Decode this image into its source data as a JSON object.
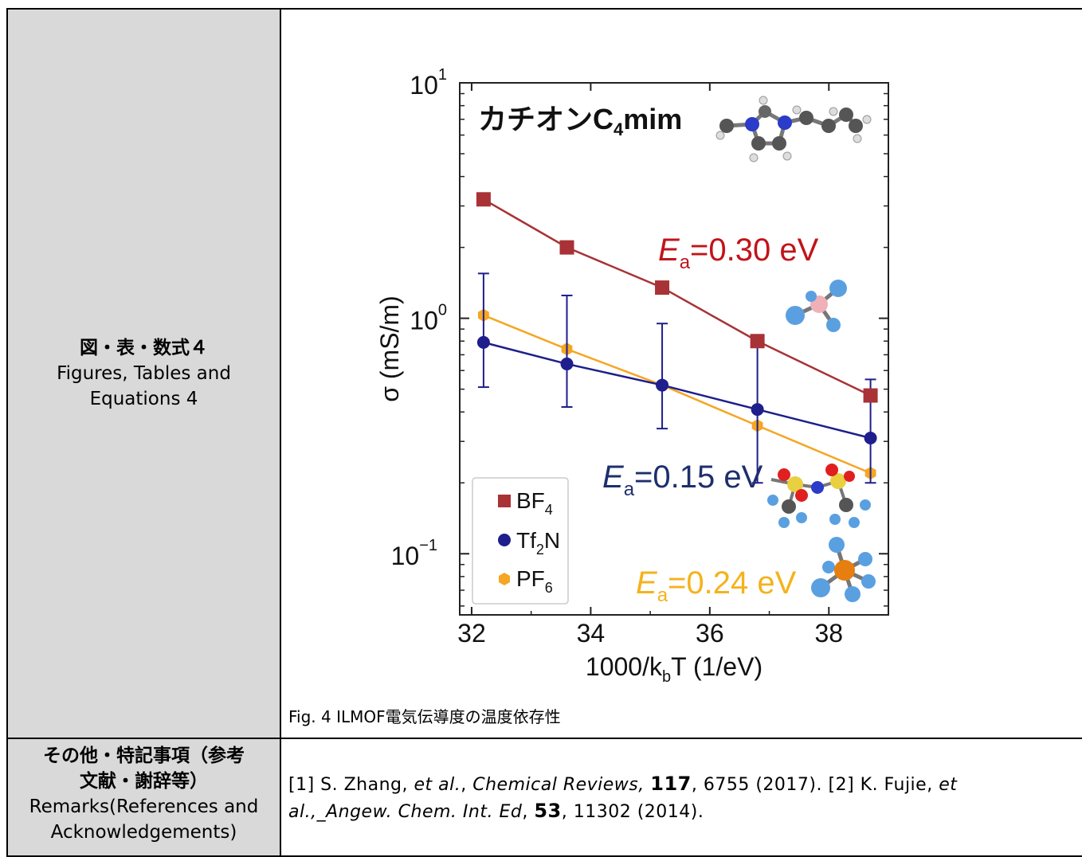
{
  "row1": {
    "label_jp": "図・表・数式４",
    "label_en_1": "Figures, Tables and",
    "label_en_2": "Equations 4",
    "caption": "Fig. 4 ILMOF電気伝導度の温度依存性"
  },
  "row2": {
    "label_jp_1": "その他・特記事項（参考",
    "label_jp_2": "文献・謝辞等）",
    "label_en_1": "Remarks(References and",
    "label_en_2": "Acknowledgements)",
    "ref1_a": "[1] S. Zhang, ",
    "ref1_etal": "et al.",
    "ref1_sep": ", ",
    "ref1_journal": "Chemical Reviews,",
    "ref1_vol": "117",
    "ref1_rest": ", 6755 (2017). [2] K. Fujie, ",
    "ref2_etal_1": "et",
    "ref2_etal_2": "al.",
    "ref2_journal": ",_Angew. Chem. Int. Ed",
    "ref2_sep": ", ",
    "ref2_vol": "53",
    "ref2_rest": ", 11302 (2014)."
  },
  "chart_data": {
    "type": "scatter",
    "x_label": "1000/k",
    "x_label_sub": "b",
    "x_label_end": "T (1/eV)",
    "y_label": "σ (mS/m)",
    "y_scale": "log",
    "xlim": [
      31.8,
      39.0
    ],
    "ylim": [
      0.055,
      10
    ],
    "x_ticks": [
      "32",
      "34",
      "36",
      "38"
    ],
    "y_ticks": [
      {
        "base": "10",
        "exp": "1"
      },
      {
        "base": "10",
        "exp": "0"
      },
      {
        "base": "10",
        "exp": "−1"
      }
    ],
    "annotation_title": "カチオンC",
    "annotation_title_sub": "4",
    "annotation_title_end": "mim",
    "series": [
      {
        "name": "BF",
        "sub": "4",
        "color": "#a83236",
        "marker": "square",
        "x": [
          32.2,
          33.6,
          35.2,
          36.8,
          38.7
        ],
        "y": [
          3.2,
          2.0,
          1.35,
          0.8,
          0.47
        ],
        "ea_label": "E",
        "ea_sub": "a",
        "ea_value": "=0.30 eV",
        "ea_color": "#c0141a"
      },
      {
        "name": "Tf",
        "sub": "2",
        "name_end": "N",
        "color": "#1e1e8c",
        "marker": "circle",
        "x": [
          32.2,
          33.6,
          35.2,
          36.8,
          38.7
        ],
        "y": [
          0.79,
          0.64,
          0.52,
          0.41,
          0.31
        ],
        "err_hi": [
          1.55,
          1.25,
          0.95,
          0.78,
          0.55
        ],
        "err_lo": [
          0.51,
          0.42,
          0.34,
          0.2,
          0.2
        ],
        "ea_label": "E",
        "ea_sub": "a",
        "ea_value": "=0.15 eV",
        "ea_color": "#1e2e6e"
      },
      {
        "name": "PF",
        "sub": "6",
        "color": "#f5a623",
        "marker": "hexagon",
        "x": [
          32.2,
          33.6,
          35.2,
          36.8,
          38.7
        ],
        "y": [
          1.03,
          0.74,
          0.52,
          0.35,
          0.22
        ],
        "ea_label": "E",
        "ea_sub": "a",
        "ea_value": "=0.24 eV",
        "ea_color": "#f5b21b"
      }
    ],
    "legend_position": "bottom-left"
  }
}
